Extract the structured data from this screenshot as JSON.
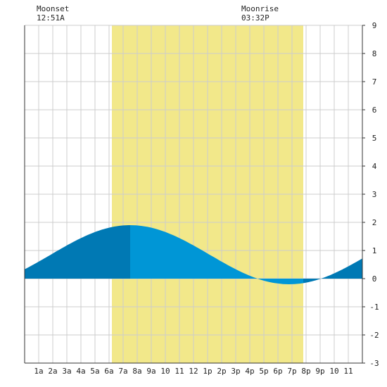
{
  "header": {
    "moonset_label": "Moonset",
    "moonset_time": "12:51A",
    "moonrise_label": "Moonrise",
    "moonrise_time": "03:32P"
  },
  "chart_data": {
    "type": "area",
    "title": "",
    "xlabel": "",
    "ylabel": "",
    "x_range_hours": [
      0,
      24
    ],
    "ylim": [
      -3,
      9
    ],
    "y_ticks": [
      -3,
      -2,
      -1,
      0,
      1,
      2,
      3,
      4,
      5,
      6,
      7,
      8,
      9
    ],
    "x_tick_labels": [
      "1a",
      "2a",
      "3a",
      "4a",
      "5a",
      "6a",
      "7a",
      "8a",
      "9a",
      "10",
      "11",
      "12",
      "1p",
      "2p",
      "3p",
      "4p",
      "5p",
      "6p",
      "7p",
      "8p",
      "9p",
      "10",
      "11"
    ],
    "daylight_hours": [
      6.2,
      19.8
    ],
    "moonset_hour": 0.85,
    "moonrise_hour": 15.53,
    "grid": true,
    "colors": {
      "daylight": "#f2e88a",
      "tide_day": "#0096d6",
      "tide_night": "#0079b4",
      "grid": "#cccccc",
      "axis": "#333333"
    },
    "tide_series": {
      "name": "",
      "high": {
        "hour": 7.5,
        "height": 1.9
      },
      "low": {
        "hour": 18.8,
        "height": -0.2
      },
      "next_high_hour": 30.1
    }
  }
}
